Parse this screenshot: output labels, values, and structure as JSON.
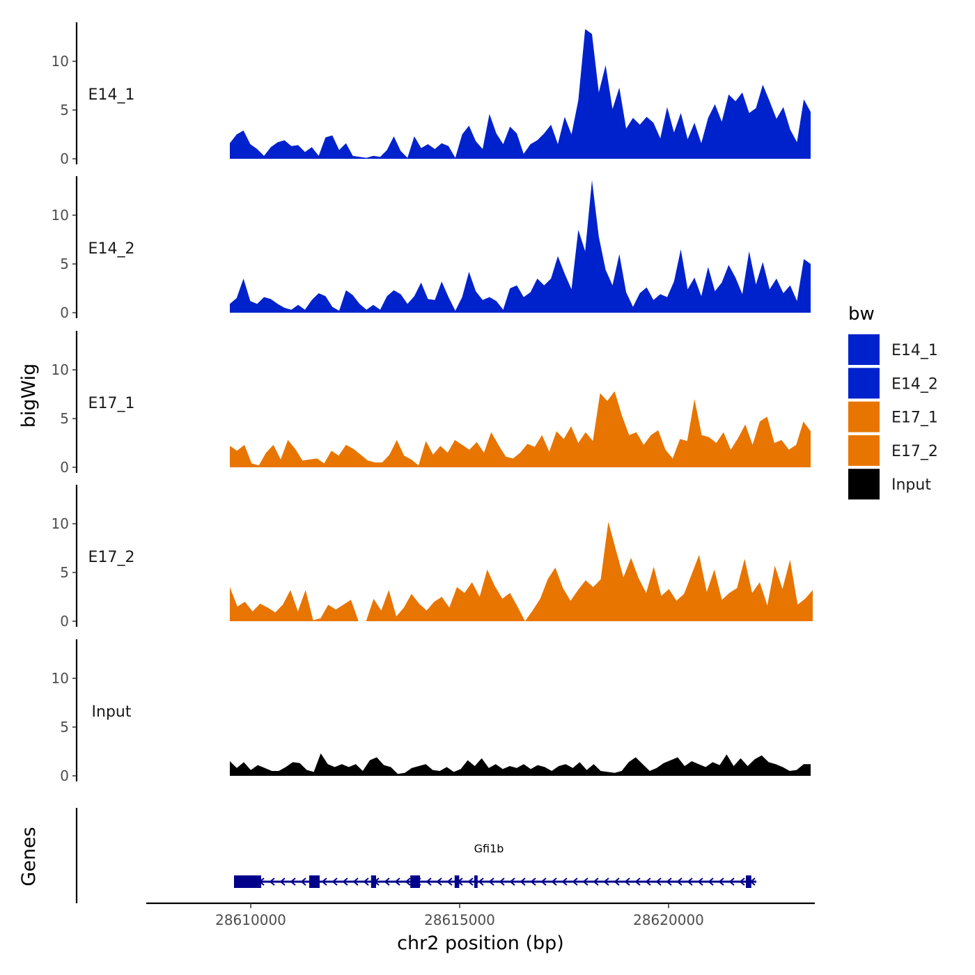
{
  "chart_data": {
    "type": "area",
    "ylabel": "bigWig",
    "xlabel": "chr2 position (bp)",
    "xlim": [
      28607500,
      28623500
    ],
    "ylim": [
      0,
      14
    ],
    "yticks": [
      0,
      5,
      10
    ],
    "xticks": [
      28610000,
      28615000,
      28620000
    ],
    "xtick_labels": [
      "28610000",
      "28615000",
      "28620000"
    ],
    "legend": {
      "title": "bw",
      "position": "right",
      "entries": [
        {
          "label": "E14_1",
          "color": "#0022cc"
        },
        {
          "label": "E14_2",
          "color": "#0022cc"
        },
        {
          "label": "E17_1",
          "color": "#e87500"
        },
        {
          "label": "E17_2",
          "color": "#e87500"
        },
        {
          "label": "Input",
          "color": "#000000"
        }
      ]
    },
    "x_step": 250,
    "x_start": 28609500,
    "series": [
      {
        "name": "E14_1",
        "color": "#0022cc",
        "values": [
          1.6,
          2.5,
          2.9,
          1.5,
          1.0,
          0.3,
          1.2,
          1.7,
          1.9,
          1.3,
          1.4,
          0.7,
          1.2,
          0.3,
          2.2,
          2.4,
          0.9,
          1.6,
          0.3,
          0.2,
          0.1,
          0.3,
          0.2,
          0.9,
          2.3,
          0.8,
          0.1,
          2.3,
          1.1,
          1.5,
          1.0,
          1.6,
          1.3,
          0.1,
          2.5,
          3.4,
          1.8,
          1.0,
          4.6,
          2.6,
          1.5,
          3.3,
          2.6,
          0.5,
          1.5,
          1.9,
          2.6,
          3.5,
          1.5,
          4.3,
          2.5,
          6.0,
          13.3,
          12.8,
          6.8,
          9.6,
          5.1,
          7.3,
          3.1,
          4.2,
          3.5,
          4.3,
          3.7,
          2.1,
          5.3,
          2.7,
          4.7,
          2.0,
          3.7,
          1.6,
          4.2,
          5.6,
          3.8,
          6.6,
          5.9,
          6.8,
          4.7,
          5.2,
          7.6,
          5.9,
          4.1,
          5.3,
          3.0,
          1.7,
          6.1,
          4.8
        ]
      },
      {
        "name": "E14_2",
        "color": "#0022cc",
        "values": [
          0.9,
          1.5,
          3.5,
          1.2,
          0.9,
          1.6,
          1.4,
          0.9,
          0.5,
          0.3,
          0.8,
          0.3,
          1.3,
          2.0,
          1.7,
          0.6,
          0.2,
          2.3,
          1.8,
          0.9,
          0.3,
          0.8,
          0.3,
          1.7,
          2.3,
          1.9,
          0.9,
          1.7,
          3.1,
          1.4,
          1.3,
          3.2,
          1.6,
          0.2,
          1.6,
          4.2,
          2.2,
          1.3,
          1.6,
          1.2,
          0.3,
          2.5,
          2.8,
          1.6,
          2.1,
          3.5,
          2.8,
          3.5,
          5.8,
          4.0,
          2.4,
          8.5,
          6.3,
          13.6,
          7.8,
          4.4,
          2.8,
          6.0,
          2.1,
          0.6,
          2.0,
          2.6,
          1.3,
          1.9,
          1.6,
          3.2,
          6.5,
          2.4,
          3.6,
          1.7,
          4.7,
          2.2,
          3.1,
          4.9,
          3.6,
          1.9,
          6.3,
          2.9,
          5.2,
          2.4,
          3.5,
          2.0,
          2.8,
          1.2,
          5.5,
          5.0
        ]
      },
      {
        "name": "E17_1",
        "color": "#e87500",
        "values": [
          2.2,
          1.7,
          2.3,
          0.4,
          0.2,
          1.5,
          2.3,
          0.8,
          2.8,
          1.9,
          0.7,
          0.8,
          0.9,
          0.4,
          1.7,
          1.2,
          2.3,
          1.9,
          1.3,
          0.7,
          0.5,
          0.5,
          1.3,
          2.8,
          1.2,
          0.8,
          0.2,
          2.7,
          1.3,
          2.2,
          1.5,
          2.8,
          2.3,
          1.8,
          2.6,
          1.5,
          3.6,
          2.3,
          1.1,
          0.9,
          1.5,
          2.4,
          2.1,
          3.3,
          1.6,
          3.7,
          2.9,
          4.2,
          2.5,
          3.6,
          2.7,
          7.6,
          6.8,
          7.8,
          5.3,
          3.3,
          3.6,
          2.3,
          3.3,
          3.8,
          1.8,
          0.9,
          2.9,
          2.7,
          7.0,
          3.3,
          3.1,
          2.5,
          3.6,
          1.8,
          3.0,
          4.4,
          2.3,
          4.7,
          5.2,
          2.5,
          2.8,
          1.8,
          2.3,
          4.7,
          3.7
        ]
      },
      {
        "name": "E17_2",
        "color": "#e87500",
        "values": [
          3.5,
          1.5,
          2.0,
          1.0,
          1.8,
          1.4,
          0.9,
          1.7,
          3.2,
          1.0,
          3.2,
          0.1,
          0.3,
          1.7,
          1.2,
          1.7,
          2.2,
          0.0,
          0.0,
          2.3,
          1.1,
          3.2,
          0.5,
          1.4,
          2.8,
          1.8,
          1.1,
          2.0,
          2.5,
          1.4,
          3.5,
          2.9,
          4.0,
          2.5,
          5.3,
          3.6,
          2.3,
          2.9,
          1.5,
          0.0,
          1.1,
          2.3,
          4.3,
          5.5,
          3.4,
          2.1,
          3.2,
          4.2,
          3.5,
          4.3,
          10.2,
          7.3,
          4.5,
          6.5,
          4.4,
          2.9,
          5.6,
          2.6,
          3.3,
          2.1,
          2.8,
          4.8,
          6.8,
          3.0,
          5.3,
          2.2,
          2.9,
          3.4,
          6.4,
          2.9,
          4.0,
          1.6,
          5.7,
          3.3,
          6.3,
          1.7,
          2.3,
          3.2
        ]
      },
      {
        "name": "Input",
        "color": "#000000",
        "values": [
          1.5,
          0.8,
          1.4,
          0.6,
          1.1,
          0.8,
          0.5,
          0.5,
          0.9,
          1.4,
          1.3,
          0.6,
          0.4,
          2.3,
          1.2,
          0.9,
          1.2,
          0.9,
          1.2,
          0.5,
          1.6,
          1.9,
          1.1,
          0.9,
          0.2,
          0.3,
          0.8,
          1.0,
          1.2,
          0.6,
          0.5,
          0.9,
          0.4,
          0.7,
          1.6,
          1.0,
          1.8,
          0.8,
          1.2,
          0.7,
          1.0,
          0.8,
          1.2,
          0.7,
          1.1,
          0.9,
          0.5,
          1.0,
          1.2,
          0.8,
          1.4,
          0.6,
          1.2,
          0.5,
          0.4,
          0.3,
          0.5,
          1.4,
          1.9,
          1.2,
          0.5,
          0.8,
          1.3,
          1.6,
          1.9,
          1.0,
          1.5,
          1.2,
          0.9,
          1.4,
          1.1,
          2.2,
          1.0,
          1.8,
          1.0,
          1.7,
          2.1,
          1.4,
          1.2,
          0.9,
          0.5,
          0.6,
          1.2,
          1.2
        ]
      }
    ],
    "genes": {
      "label": "Genes",
      "name": "Gfi1b",
      "color": "#00008b",
      "start": 28609600,
      "end": 28622100,
      "strand": "-",
      "exons": [
        [
          28609600,
          28610250
        ],
        [
          28611400,
          28611650
        ],
        [
          28612880,
          28613000
        ],
        [
          28613820,
          28614050
        ],
        [
          28614880,
          28614990
        ],
        [
          28615350,
          28615430
        ],
        [
          28621850,
          28621980
        ]
      ]
    }
  }
}
